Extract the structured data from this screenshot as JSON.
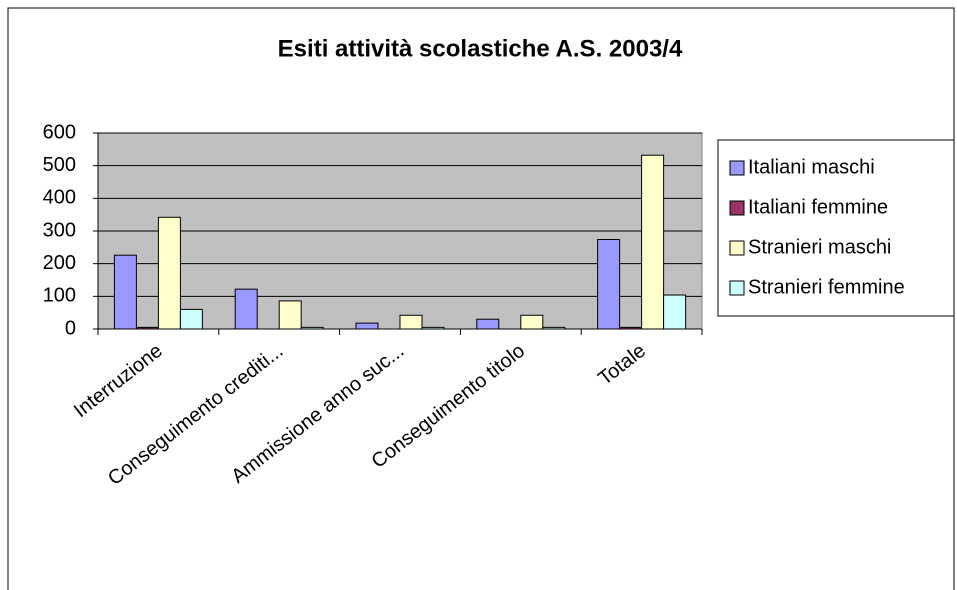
{
  "chart_data": {
    "type": "bar",
    "title": "Esiti attività scolastiche A.S. 2003/4",
    "categories": [
      "Interruzione",
      "Conseguimento crediti...",
      "Ammissione anno suc...",
      "Conseguimento titolo",
      "Totale"
    ],
    "series": [
      {
        "name": "Italiani maschi",
        "color": "#9999ff",
        "values": [
          226,
          122,
          18,
          30,
          274
        ]
      },
      {
        "name": "Italiani femmine",
        "color": "#993366",
        "values": [
          5,
          0,
          0,
          0,
          5
        ]
      },
      {
        "name": "Stranieri maschi",
        "color": "#ffffcc",
        "values": [
          342,
          86,
          42,
          42,
          532
        ]
      },
      {
        "name": "Stranieri femmine",
        "color": "#ccffff",
        "values": [
          60,
          5,
          5,
          5,
          104
        ]
      }
    ],
    "ylim": [
      0,
      600
    ],
    "yticks": [
      0,
      100,
      200,
      300,
      400,
      500,
      600
    ],
    "grid": true,
    "legend": "right",
    "plot_background": "#c0c0c0"
  }
}
